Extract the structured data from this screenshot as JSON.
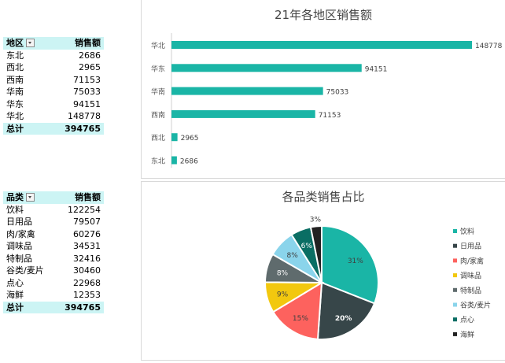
{
  "region_pivot": {
    "header": {
      "region": "地区",
      "sales": "销售额"
    },
    "rows": [
      {
        "region": "东北",
        "sales": "2686"
      },
      {
        "region": "西北",
        "sales": "2965"
      },
      {
        "region": "西南",
        "sales": "71153"
      },
      {
        "region": "华南",
        "sales": "75033"
      },
      {
        "region": "华东",
        "sales": "94151"
      },
      {
        "region": "华北",
        "sales": "148778"
      }
    ],
    "total": {
      "label": "总计",
      "value": "394765"
    }
  },
  "category_pivot": {
    "header": {
      "category": "品类",
      "sales": "销售额"
    },
    "rows": [
      {
        "category": "饮料",
        "sales": "122254"
      },
      {
        "category": "日用品",
        "sales": "79507"
      },
      {
        "category": "肉/家禽",
        "sales": "60276"
      },
      {
        "category": "调味品",
        "sales": "34531"
      },
      {
        "category": "特制品",
        "sales": "32416"
      },
      {
        "category": "谷类/麦片",
        "sales": "30460"
      },
      {
        "category": "点心",
        "sales": "22968"
      },
      {
        "category": "海鲜",
        "sales": "12353"
      }
    ],
    "total": {
      "label": "总计",
      "value": "394765"
    }
  },
  "chart_data": [
    {
      "type": "bar",
      "orientation": "horizontal",
      "title": "21年各地区销售额",
      "categories": [
        "华北",
        "华东",
        "华南",
        "西南",
        "西北",
        "东北"
      ],
      "values": [
        148778,
        94151,
        75033,
        71153,
        2965,
        2686
      ],
      "color": "#1ab5a6",
      "grid": false,
      "data_labels": true
    },
    {
      "type": "pie",
      "title": "各品类销售占比",
      "labels": [
        "饮料",
        "日用品",
        "肉/家禽",
        "调味品",
        "特制品",
        "谷类/麦片",
        "点心",
        "海鲜"
      ],
      "values": [
        122254,
        79507,
        60276,
        34531,
        32416,
        30460,
        22968,
        12353
      ],
      "percent_labels": [
        "31%",
        "20%",
        "15%",
        "9%",
        "8%",
        "8%",
        "6%",
        "3%"
      ],
      "colors": [
        "#1ab5a6",
        "#374649",
        "#fd625e",
        "#f2c80f",
        "#5f6b6d",
        "#8ad4eb",
        "#0a6e64",
        "#222222"
      ],
      "legend": "right"
    }
  ]
}
